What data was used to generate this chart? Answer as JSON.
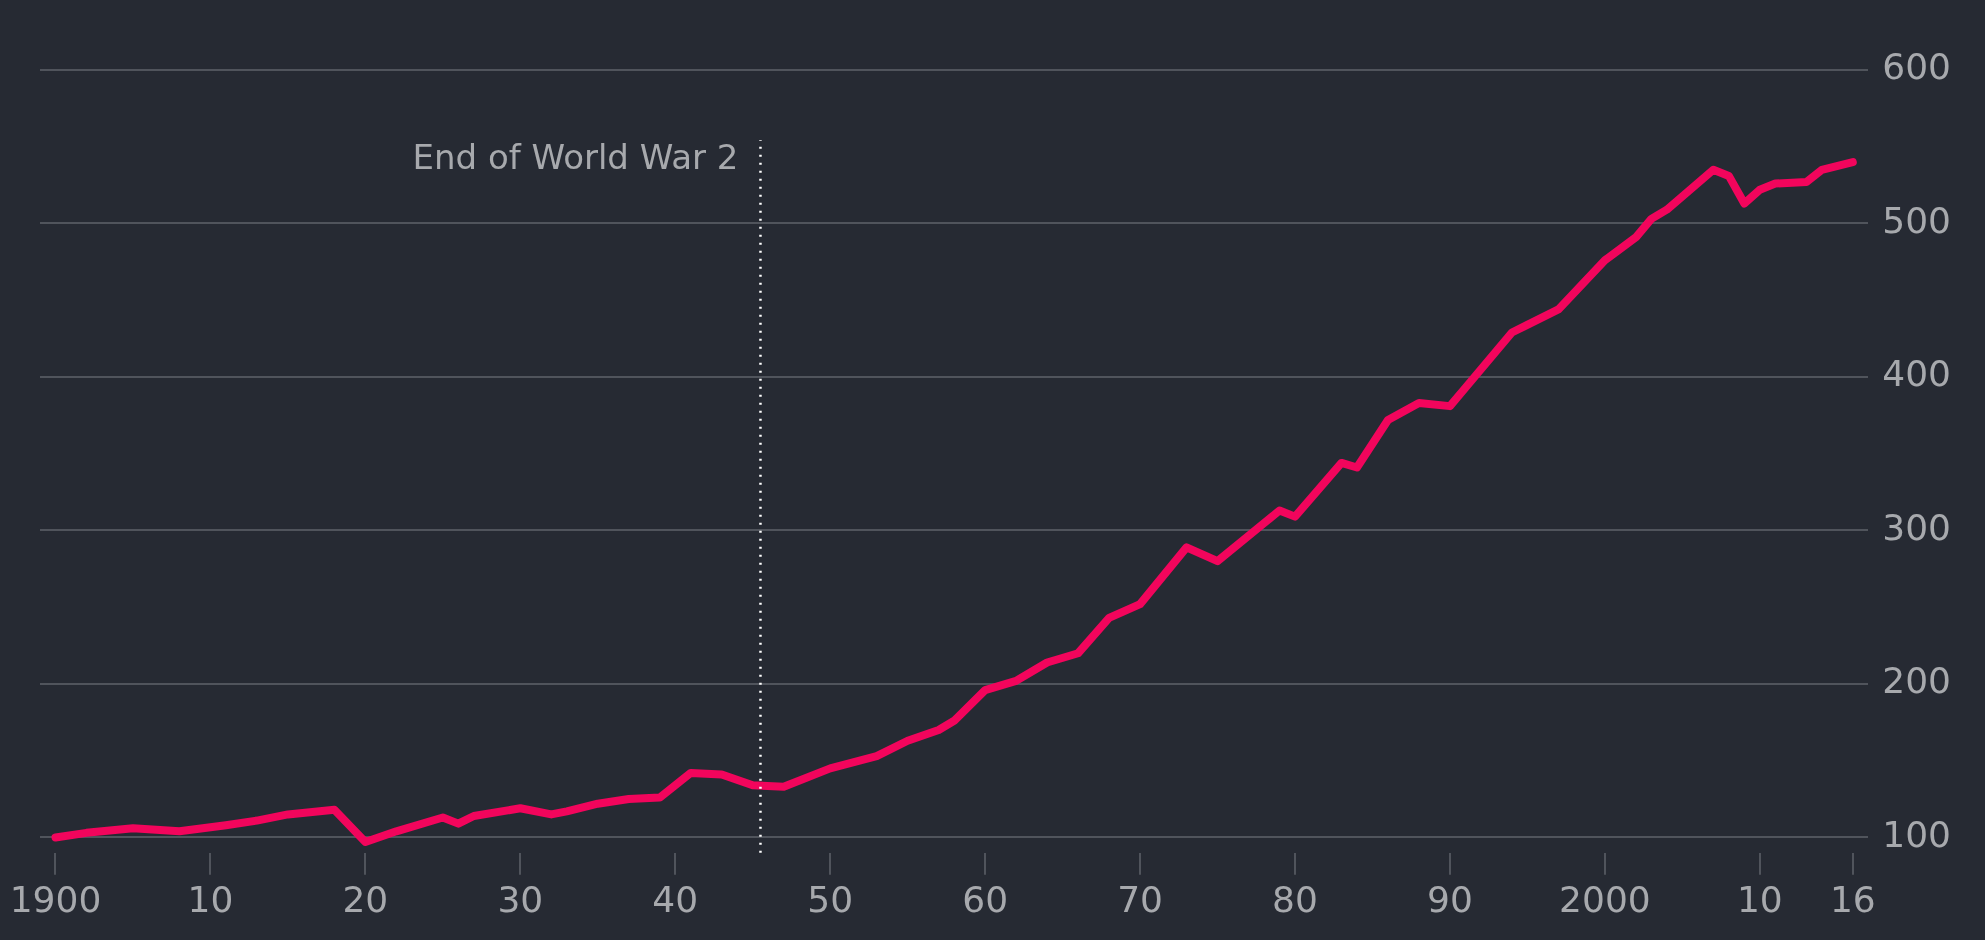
{
  "chart_data": {
    "type": "line",
    "series": [
      {
        "color": "#f2055c",
        "x": [
          1900,
          1902,
          1905,
          1908,
          1911,
          1913,
          1915,
          1918,
          1920,
          1922,
          1925,
          1926,
          1927,
          1930,
          1932,
          1933,
          1935,
          1937,
          1939,
          1941,
          1943,
          1945,
          1947,
          1950,
          1953,
          1955,
          1957,
          1958,
          1960,
          1962,
          1964,
          1966,
          1968,
          1970,
          1973,
          1975,
          1979,
          1980,
          1983,
          1984,
          1986,
          1988,
          1990,
          1991,
          1994,
          1997,
          2000,
          2002,
          2003,
          2004,
          2007,
          2008,
          2009,
          2010,
          2011,
          2013,
          2014,
          2016
        ],
        "values": [
          100,
          103,
          106,
          104,
          108,
          111,
          115,
          118,
          97,
          104,
          113,
          109,
          114,
          119,
          115,
          117,
          122,
          125,
          126,
          142,
          141,
          134,
          133,
          145,
          153,
          163,
          170,
          176,
          196,
          202,
          214,
          220,
          243,
          252,
          289,
          280,
          313,
          309,
          344,
          341,
          372,
          383,
          381,
          393,
          429,
          444,
          476,
          491,
          503,
          509,
          535,
          531,
          513,
          522,
          526,
          527,
          535,
          540
        ]
      }
    ],
    "xlim": [
      1899,
      2017
    ],
    "xticks": [
      {
        "value": 1900,
        "label": "1900"
      },
      {
        "value": 1910,
        "label": "10"
      },
      {
        "value": 1920,
        "label": "20"
      },
      {
        "value": 1930,
        "label": "30"
      },
      {
        "value": 1940,
        "label": "40"
      },
      {
        "value": 1950,
        "label": "50"
      },
      {
        "value": 1960,
        "label": "60"
      },
      {
        "value": 1970,
        "label": "70"
      },
      {
        "value": 1980,
        "label": "80"
      },
      {
        "value": 1990,
        "label": "90"
      },
      {
        "value": 2000,
        "label": "2000"
      },
      {
        "value": 2010,
        "label": "10"
      },
      {
        "value": 2016,
        "label": "16"
      }
    ],
    "ylim": [
      90,
      600
    ],
    "yticks": [
      100,
      200,
      300,
      400,
      500,
      600
    ],
    "grid": "y",
    "legend": false,
    "line_style": "solid",
    "marker": "none",
    "ref_lines": [
      {
        "axis": "x",
        "value": 1945.5,
        "label": "End of World War 2",
        "color": "#ffffff",
        "line_style": "dotted"
      }
    ]
  }
}
